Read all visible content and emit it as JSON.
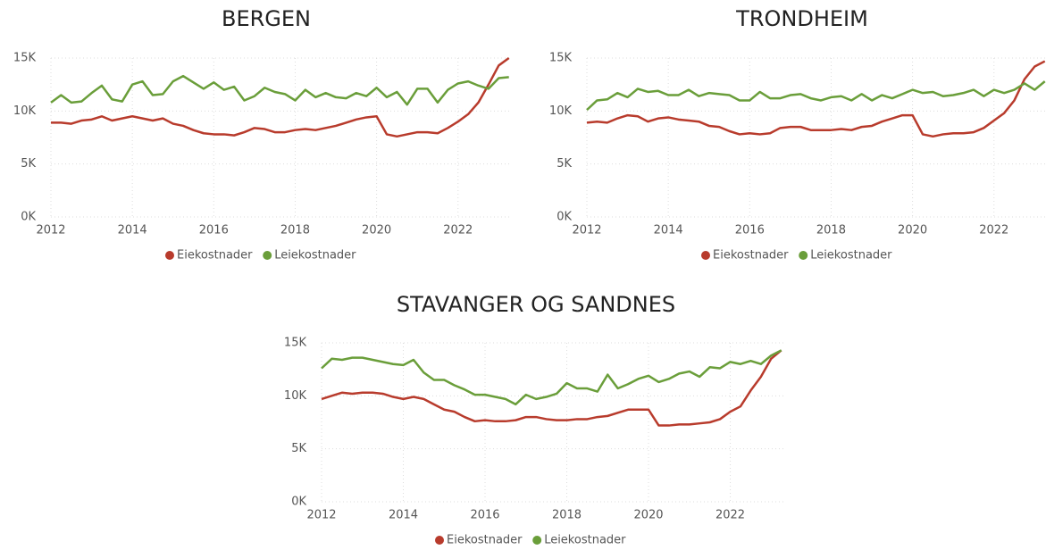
{
  "chart_data": [
    {
      "type": "line",
      "title": "BERGEN",
      "x": [
        2012,
        2012.25,
        2012.5,
        2012.75,
        2013,
        2013.25,
        2013.5,
        2013.75,
        2014,
        2014.25,
        2014.5,
        2014.75,
        2015,
        2015.25,
        2015.5,
        2015.75,
        2016,
        2016.25,
        2016.5,
        2016.75,
        2017,
        2017.25,
        2017.5,
        2017.75,
        2018,
        2018.25,
        2018.5,
        2018.75,
        2019,
        2019.25,
        2019.5,
        2019.75,
        2020,
        2020.25,
        2020.5,
        2020.75,
        2021,
        2021.25,
        2021.5,
        2021.75,
        2022,
        2022.25,
        2022.5,
        2022.75,
        2023,
        2023.25
      ],
      "series": [
        {
          "name": "Eiekostnader",
          "color": "#b83b2c",
          "values": [
            8.9,
            8.9,
            8.8,
            9.1,
            9.2,
            9.5,
            9.1,
            9.3,
            9.5,
            9.3,
            9.1,
            9.3,
            8.8,
            8.6,
            8.2,
            7.9,
            7.8,
            7.8,
            7.7,
            8.0,
            8.4,
            8.3,
            8.0,
            8.0,
            8.2,
            8.3,
            8.2,
            8.4,
            8.6,
            8.9,
            9.2,
            9.4,
            9.5,
            7.8,
            7.6,
            7.8,
            8.0,
            8.0,
            7.9,
            8.4,
            9.0,
            9.7,
            10.8,
            12.5,
            14.3,
            15.0
          ]
        },
        {
          "name": "Leiekostnader",
          "color": "#6a9e3a",
          "values": [
            10.8,
            11.5,
            10.8,
            10.9,
            11.7,
            12.4,
            11.1,
            10.9,
            12.5,
            12.8,
            11.5,
            11.6,
            12.8,
            13.3,
            12.7,
            12.1,
            12.7,
            12.0,
            12.3,
            11.0,
            11.4,
            12.2,
            11.8,
            11.6,
            11.0,
            12.0,
            11.3,
            11.7,
            11.3,
            11.2,
            11.7,
            11.4,
            12.2,
            11.3,
            11.8,
            10.6,
            12.1,
            12.1,
            10.8,
            12.0,
            12.6,
            12.8,
            12.4,
            12.1,
            13.1,
            13.2
          ]
        }
      ],
      "xlim": [
        2012,
        2023.3
      ],
      "xticks": [
        2012,
        2014,
        2016,
        2018,
        2020,
        2022
      ],
      "ylim": [
        0,
        15
      ],
      "yticks": [
        {
          "value": 0,
          "label": "0K"
        },
        {
          "value": 5,
          "label": "5K"
        },
        {
          "value": 10,
          "label": "10K"
        },
        {
          "value": 15,
          "label": "15K"
        }
      ],
      "grid": true
    },
    {
      "type": "line",
      "title": "TRONDHEIM",
      "x": [
        2012,
        2012.25,
        2012.5,
        2012.75,
        2013,
        2013.25,
        2013.5,
        2013.75,
        2014,
        2014.25,
        2014.5,
        2014.75,
        2015,
        2015.25,
        2015.5,
        2015.75,
        2016,
        2016.25,
        2016.5,
        2016.75,
        2017,
        2017.25,
        2017.5,
        2017.75,
        2018,
        2018.25,
        2018.5,
        2018.75,
        2019,
        2019.25,
        2019.5,
        2019.75,
        2020,
        2020.25,
        2020.5,
        2020.75,
        2021,
        2021.25,
        2021.5,
        2021.75,
        2022,
        2022.25,
        2022.5,
        2022.75,
        2023,
        2023.25
      ],
      "series": [
        {
          "name": "Eiekostnader",
          "color": "#b83b2c",
          "values": [
            8.9,
            9.0,
            8.9,
            9.3,
            9.6,
            9.5,
            9.0,
            9.3,
            9.4,
            9.2,
            9.1,
            9.0,
            8.6,
            8.5,
            8.1,
            7.8,
            7.9,
            7.8,
            7.9,
            8.4,
            8.5,
            8.5,
            8.2,
            8.2,
            8.2,
            8.3,
            8.2,
            8.5,
            8.6,
            9.0,
            9.3,
            9.6,
            9.6,
            7.8,
            7.6,
            7.8,
            7.9,
            7.9,
            8.0,
            8.4,
            9.1,
            9.8,
            11.0,
            13.0,
            14.2,
            14.7
          ]
        },
        {
          "name": "Leiekostnader",
          "color": "#6a9e3a",
          "values": [
            10.1,
            11.0,
            11.1,
            11.7,
            11.3,
            12.1,
            11.8,
            11.9,
            11.5,
            11.5,
            12.0,
            11.4,
            11.7,
            11.6,
            11.5,
            11.0,
            11.0,
            11.8,
            11.2,
            11.2,
            11.5,
            11.6,
            11.2,
            11.0,
            11.3,
            11.4,
            11.0,
            11.6,
            11.0,
            11.5,
            11.2,
            11.6,
            12.0,
            11.7,
            11.8,
            11.4,
            11.5,
            11.7,
            12.0,
            11.4,
            12.0,
            11.7,
            12.0,
            12.6,
            12.0,
            12.8
          ]
        }
      ],
      "xlim": [
        2012,
        2023.3
      ],
      "xticks": [
        2012,
        2014,
        2016,
        2018,
        2020,
        2022
      ],
      "ylim": [
        0,
        15
      ],
      "yticks": [
        {
          "value": 0,
          "label": "0K"
        },
        {
          "value": 5,
          "label": "5K"
        },
        {
          "value": 10,
          "label": "10K"
        },
        {
          "value": 15,
          "label": "15K"
        }
      ],
      "grid": true
    },
    {
      "type": "line",
      "title": "STAVANGER OG SANDNES",
      "x": [
        2012,
        2012.25,
        2012.5,
        2012.75,
        2013,
        2013.25,
        2013.5,
        2013.75,
        2014,
        2014.25,
        2014.5,
        2014.75,
        2015,
        2015.25,
        2015.5,
        2015.75,
        2016,
        2016.25,
        2016.5,
        2016.75,
        2017,
        2017.25,
        2017.5,
        2017.75,
        2018,
        2018.25,
        2018.5,
        2018.75,
        2019,
        2019.25,
        2019.5,
        2019.75,
        2020,
        2020.25,
        2020.5,
        2020.75,
        2021,
        2021.25,
        2021.5,
        2021.75,
        2022,
        2022.25,
        2022.5,
        2022.75,
        2023,
        2023.25
      ],
      "series": [
        {
          "name": "Eiekostnader",
          "color": "#b83b2c",
          "values": [
            9.7,
            10.0,
            10.3,
            10.2,
            10.3,
            10.3,
            10.2,
            9.9,
            9.7,
            9.9,
            9.7,
            9.2,
            8.7,
            8.5,
            8.0,
            7.6,
            7.7,
            7.6,
            7.6,
            7.7,
            8.0,
            8.0,
            7.8,
            7.7,
            7.7,
            7.8,
            7.8,
            8.0,
            8.1,
            8.4,
            8.7,
            8.7,
            8.7,
            7.2,
            7.2,
            7.3,
            7.3,
            7.4,
            7.5,
            7.8,
            8.5,
            9.0,
            10.5,
            11.8,
            13.5,
            14.3
          ]
        },
        {
          "name": "Leiekostnader",
          "color": "#6a9e3a",
          "values": [
            12.6,
            13.5,
            13.4,
            13.6,
            13.6,
            13.4,
            13.2,
            13.0,
            12.9,
            13.4,
            12.2,
            11.5,
            11.5,
            11.0,
            10.6,
            10.1,
            10.1,
            9.9,
            9.7,
            9.2,
            10.1,
            9.7,
            9.9,
            10.2,
            11.2,
            10.7,
            10.7,
            10.4,
            12.0,
            10.7,
            11.1,
            11.6,
            11.9,
            11.3,
            11.6,
            12.1,
            12.3,
            11.8,
            12.7,
            12.6,
            13.2,
            13.0,
            13.3,
            13.0,
            13.8,
            14.3
          ]
        }
      ],
      "xlim": [
        2012,
        2023.3
      ],
      "xticks": [
        2012,
        2014,
        2016,
        2018,
        2020,
        2022
      ],
      "ylim": [
        0,
        15
      ],
      "yticks": [
        {
          "value": 0,
          "label": "0K"
        },
        {
          "value": 5,
          "label": "5K"
        },
        {
          "value": 10,
          "label": "10K"
        },
        {
          "value": 15,
          "label": "15K"
        }
      ],
      "grid": true
    }
  ]
}
